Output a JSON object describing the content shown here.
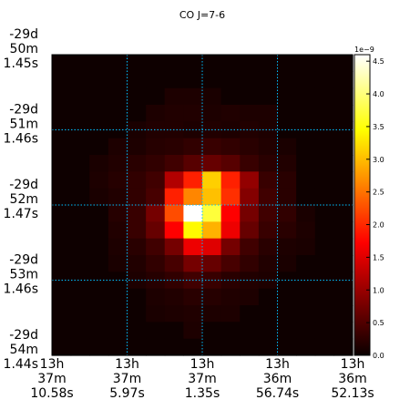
{
  "chart_data": {
    "type": "heatmap",
    "title": "CO J=7-6",
    "colormap": "hot",
    "colorbar": {
      "min": 0.0,
      "max": 4.6,
      "multiplier_label": "1e−9",
      "ticks": [
        0.0,
        0.5,
        1.0,
        1.5,
        2.0,
        2.5,
        3.0,
        3.5,
        4.0,
        4.5
      ],
      "tick_labels": [
        "0.0",
        "0.5",
        "1.0",
        "1.5",
        "2.0",
        "2.5",
        "3.0",
        "3.5",
        "4.0",
        "4.5"
      ]
    },
    "x_tick_labels": [
      [
        "13h",
        "37m",
        "10.58s"
      ],
      [
        "13h",
        "37m",
        "5.97s"
      ],
      [
        "13h",
        "37m",
        "1.35s"
      ],
      [
        "13h",
        "36m",
        "56.74s"
      ],
      [
        "13h",
        "36m",
        "52.13s"
      ]
    ],
    "y_tick_labels": [
      [
        "-29d",
        "50m",
        "1.45s"
      ],
      [
        "-29d",
        "51m",
        "1.46s"
      ],
      [
        "-29d",
        "52m",
        "1.47s"
      ],
      [
        "-29d",
        "53m",
        "1.46s"
      ],
      [
        "-29d",
        "54m",
        "1.44s"
      ]
    ],
    "grid": true,
    "grid_color": "#00bfff",
    "values": [
      [
        0.02,
        0.02,
        0.02,
        0.02,
        0.02,
        0.02,
        0.02,
        0.02,
        0.02,
        0.02,
        0.02,
        0.02,
        0.02,
        0.02,
        0.02,
        0.02
      ],
      [
        0.02,
        0.02,
        0.02,
        0.02,
        0.02,
        0.02,
        0.02,
        0.02,
        0.02,
        0.02,
        0.02,
        0.02,
        0.02,
        0.02,
        0.02,
        0.02
      ],
      [
        0.02,
        0.02,
        0.02,
        0.02,
        0.02,
        0.02,
        0.12,
        0.12,
        0.1,
        0.02,
        0.02,
        0.02,
        0.02,
        0.02,
        0.02,
        0.02
      ],
      [
        0.02,
        0.02,
        0.02,
        0.02,
        0.02,
        0.12,
        0.15,
        0.15,
        0.12,
        0.14,
        0.12,
        0.12,
        0.02,
        0.02,
        0.02,
        0.02
      ],
      [
        0.02,
        0.02,
        0.02,
        0.02,
        0.1,
        0.15,
        0.15,
        0.12,
        0.15,
        0.12,
        0.15,
        0.12,
        0.02,
        0.02,
        0.02,
        0.02
      ],
      [
        0.02,
        0.02,
        0.02,
        0.12,
        0.12,
        0.18,
        0.2,
        0.25,
        0.3,
        0.25,
        0.2,
        0.15,
        0.1,
        0.02,
        0.02,
        0.02
      ],
      [
        0.02,
        0.02,
        0.1,
        0.15,
        0.2,
        0.25,
        0.35,
        0.5,
        0.6,
        0.5,
        0.3,
        0.2,
        0.15,
        0.02,
        0.02,
        0.02
      ],
      [
        0.02,
        0.02,
        0.12,
        0.18,
        0.25,
        0.35,
        1.1,
        1.9,
        3.1,
        1.9,
        0.9,
        0.3,
        0.2,
        0.02,
        0.02,
        0.02
      ],
      [
        0.02,
        0.02,
        0.1,
        0.15,
        0.25,
        0.4,
        1.9,
        2.6,
        3.0,
        2.0,
        0.8,
        0.35,
        0.2,
        0.02,
        0.02,
        0.02
      ],
      [
        0.02,
        0.02,
        0.02,
        0.18,
        0.3,
        0.7,
        2.2,
        4.6,
        3.7,
        1.6,
        0.7,
        0.35,
        0.25,
        0.1,
        0.02,
        0.02
      ],
      [
        0.02,
        0.02,
        0.02,
        0.15,
        0.3,
        0.6,
        1.6,
        3.4,
        2.9,
        1.5,
        0.6,
        0.3,
        0.2,
        0.12,
        0.02,
        0.02
      ],
      [
        0.02,
        0.02,
        0.02,
        0.12,
        0.2,
        0.35,
        0.7,
        1.5,
        1.4,
        0.7,
        0.35,
        0.2,
        0.12,
        0.1,
        0.02,
        0.02
      ],
      [
        0.02,
        0.02,
        0.02,
        0.1,
        0.15,
        0.25,
        0.4,
        0.7,
        0.6,
        0.4,
        0.25,
        0.15,
        0.1,
        0.02,
        0.02,
        0.02
      ],
      [
        0.02,
        0.02,
        0.02,
        0.02,
        0.12,
        0.18,
        0.25,
        0.35,
        0.3,
        0.2,
        0.15,
        0.12,
        0.02,
        0.02,
        0.02,
        0.02
      ],
      [
        0.02,
        0.02,
        0.02,
        0.02,
        0.02,
        0.12,
        0.15,
        0.2,
        0.18,
        0.14,
        0.12,
        0.02,
        0.02,
        0.02,
        0.02,
        0.02
      ],
      [
        0.02,
        0.02,
        0.02,
        0.02,
        0.02,
        0.1,
        0.12,
        0.14,
        0.12,
        0.12,
        0.02,
        0.02,
        0.02,
        0.02,
        0.02,
        0.02
      ],
      [
        0.02,
        0.02,
        0.02,
        0.02,
        0.02,
        0.02,
        0.02,
        0.12,
        0.02,
        0.02,
        0.02,
        0.02,
        0.02,
        0.02,
        0.02,
        0.02
      ],
      [
        0.02,
        0.02,
        0.02,
        0.02,
        0.02,
        0.02,
        0.02,
        0.02,
        0.02,
        0.02,
        0.02,
        0.02,
        0.02,
        0.02,
        0.02,
        0.02
      ]
    ]
  }
}
